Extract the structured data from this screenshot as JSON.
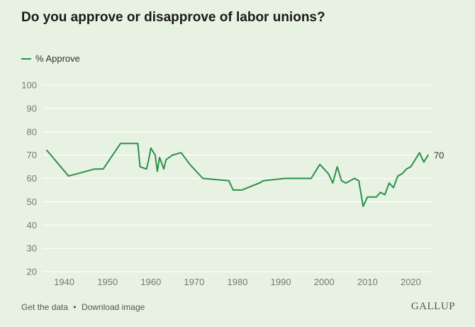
{
  "colors": {
    "line": "#2a9149",
    "background": "#e8f2e3",
    "grid": "#ffffff",
    "tick": "#777777"
  },
  "footer": {
    "get_data": "Get the data",
    "separator": "•",
    "download": "Download image",
    "brand": "GALLUP"
  },
  "chart_data": {
    "type": "line",
    "title": "Do you approve or disapprove of labor unions?",
    "xlabel": "",
    "ylabel": "",
    "xlim": [
      1935,
      2025
    ],
    "ylim": [
      20,
      100
    ],
    "xticks": [
      1940,
      1950,
      1960,
      1970,
      1980,
      1990,
      2000,
      2010,
      2020
    ],
    "yticks": [
      20,
      30,
      40,
      50,
      60,
      70,
      80,
      90,
      100
    ],
    "grid": "horizontal",
    "legend": "top-left",
    "end_label": "70",
    "series": [
      {
        "name": "% Approve",
        "points": [
          [
            1936,
            72
          ],
          [
            1941,
            61
          ],
          [
            1947,
            64
          ],
          [
            1949,
            64
          ],
          [
            1953,
            75
          ],
          [
            1957,
            75
          ],
          [
            1957.5,
            65
          ],
          [
            1959,
            64
          ],
          [
            1959.5,
            68
          ],
          [
            1960,
            73
          ],
          [
            1961,
            70
          ],
          [
            1961.5,
            63
          ],
          [
            1962,
            69
          ],
          [
            1963,
            64
          ],
          [
            1963.5,
            68
          ],
          [
            1965,
            70
          ],
          [
            1967,
            71
          ],
          [
            1969,
            66
          ],
          [
            1972,
            60
          ],
          [
            1978,
            59
          ],
          [
            1979,
            55
          ],
          [
            1981,
            55
          ],
          [
            1985,
            58
          ],
          [
            1986,
            59
          ],
          [
            1991,
            60
          ],
          [
            1997,
            60
          ],
          [
            1999,
            66
          ],
          [
            2001,
            62
          ],
          [
            2002,
            58
          ],
          [
            2003,
            65
          ],
          [
            2004,
            59
          ],
          [
            2005,
            58
          ],
          [
            2007,
            60
          ],
          [
            2008,
            59
          ],
          [
            2009,
            48
          ],
          [
            2010,
            52
          ],
          [
            2011,
            52
          ],
          [
            2012,
            52
          ],
          [
            2013,
            54
          ],
          [
            2014,
            53
          ],
          [
            2015,
            58
          ],
          [
            2016,
            56
          ],
          [
            2017,
            61
          ],
          [
            2018,
            62
          ],
          [
            2019,
            64
          ],
          [
            2020,
            65
          ],
          [
            2021,
            68
          ],
          [
            2022,
            71
          ],
          [
            2023,
            67
          ],
          [
            2024,
            70
          ]
        ]
      }
    ]
  }
}
